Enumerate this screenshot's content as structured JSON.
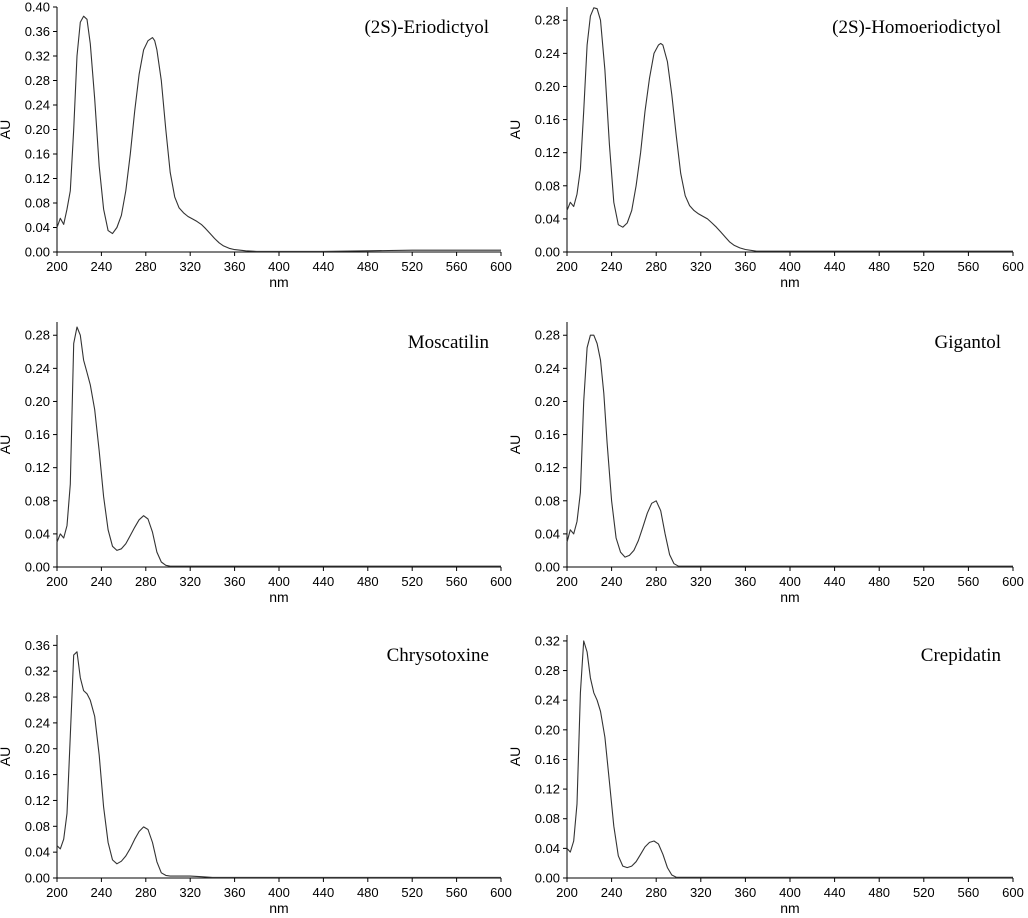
{
  "chart_data": [
    {
      "type": "line",
      "title": "(2S)-Eriodictyol",
      "xlabel": "nm",
      "ylabel": "AU",
      "xlim": [
        200,
        600
      ],
      "ylim": [
        0,
        0.4
      ],
      "xticks": [
        "200",
        "240",
        "280",
        "320",
        "360",
        "400",
        "440",
        "480",
        "520",
        "560",
        "600"
      ],
      "yticks": [
        "0.00",
        "0.04",
        "0.08",
        "0.12",
        "0.16",
        "0.20",
        "0.24",
        "0.28",
        "0.32",
        "0.36",
        "0.40"
      ],
      "series": [
        {
          "x": [
            200,
            203,
            206,
            209,
            212,
            215,
            218,
            221,
            224,
            227,
            230,
            234,
            238,
            242,
            246,
            250,
            254,
            258,
            262,
            266,
            270,
            274,
            278,
            282,
            286,
            288,
            290,
            294,
            298,
            302,
            306,
            310,
            314,
            318,
            322,
            326,
            330,
            334,
            338,
            342,
            346,
            350,
            355,
            360,
            370,
            380,
            400,
            440,
            480,
            520,
            560,
            600
          ],
          "y": [
            0.04,
            0.055,
            0.045,
            0.07,
            0.1,
            0.2,
            0.32,
            0.375,
            0.385,
            0.38,
            0.34,
            0.25,
            0.14,
            0.07,
            0.035,
            0.03,
            0.04,
            0.06,
            0.1,
            0.16,
            0.23,
            0.29,
            0.33,
            0.345,
            0.35,
            0.345,
            0.33,
            0.28,
            0.2,
            0.13,
            0.09,
            0.072,
            0.064,
            0.058,
            0.054,
            0.05,
            0.045,
            0.038,
            0.03,
            0.022,
            0.015,
            0.01,
            0.006,
            0.004,
            0.002,
            0.001,
            0.001,
            0.001,
            0.002,
            0.003,
            0.003,
            0.003
          ]
        }
      ]
    },
    {
      "type": "line",
      "title": "(2S)-Homoeriodictyol",
      "xlabel": "nm",
      "ylabel": "AU",
      "xlim": [
        200,
        600
      ],
      "ylim": [
        0,
        0.296
      ],
      "xticks": [
        "200",
        "240",
        "280",
        "320",
        "360",
        "400",
        "440",
        "480",
        "520",
        "560",
        "600"
      ],
      "yticks": [
        "0.00",
        "0.04",
        "0.08",
        "0.12",
        "0.16",
        "0.20",
        "0.24",
        "0.28"
      ],
      "series": [
        {
          "x": [
            200,
            203,
            206,
            209,
            212,
            215,
            218,
            221,
            224,
            227,
            230,
            234,
            238,
            242,
            246,
            250,
            254,
            258,
            262,
            266,
            270,
            274,
            278,
            282,
            284,
            286,
            290,
            294,
            298,
            302,
            306,
            310,
            314,
            318,
            322,
            326,
            330,
            334,
            338,
            342,
            346,
            350,
            355,
            360,
            370,
            380,
            400,
            440,
            480,
            520,
            560,
            600
          ],
          "y": [
            0.05,
            0.06,
            0.055,
            0.07,
            0.1,
            0.17,
            0.25,
            0.285,
            0.295,
            0.294,
            0.28,
            0.22,
            0.13,
            0.06,
            0.033,
            0.03,
            0.035,
            0.05,
            0.08,
            0.12,
            0.17,
            0.21,
            0.24,
            0.25,
            0.252,
            0.25,
            0.23,
            0.19,
            0.14,
            0.095,
            0.068,
            0.056,
            0.05,
            0.046,
            0.043,
            0.04,
            0.035,
            0.03,
            0.024,
            0.018,
            0.012,
            0.008,
            0.005,
            0.003,
            0.001,
            0.001,
            0.001,
            0.001,
            0.001,
            0.001,
            0.001,
            0.001
          ]
        }
      ]
    },
    {
      "type": "line",
      "title": "Moscatilin",
      "xlabel": "nm",
      "ylabel": "AU",
      "xlim": [
        200,
        600
      ],
      "ylim": [
        0,
        0.296
      ],
      "xticks": [
        "200",
        "240",
        "280",
        "320",
        "360",
        "400",
        "440",
        "480",
        "520",
        "560",
        "600"
      ],
      "yticks": [
        "0.00",
        "0.04",
        "0.08",
        "0.12",
        "0.16",
        "0.20",
        "0.24",
        "0.28"
      ],
      "series": [
        {
          "x": [
            200,
            203,
            206,
            209,
            212,
            215,
            218,
            221,
            224,
            227,
            230,
            234,
            238,
            242,
            246,
            250,
            254,
            258,
            262,
            266,
            270,
            274,
            278,
            282,
            286,
            290,
            294,
            298,
            302,
            310,
            320,
            340,
            360,
            400,
            440,
            480,
            520,
            560,
            600
          ],
          "y": [
            0.03,
            0.04,
            0.035,
            0.05,
            0.1,
            0.27,
            0.29,
            0.28,
            0.25,
            0.235,
            0.22,
            0.19,
            0.14,
            0.085,
            0.045,
            0.025,
            0.02,
            0.022,
            0.028,
            0.038,
            0.048,
            0.057,
            0.062,
            0.058,
            0.042,
            0.018,
            0.006,
            0.002,
            0.001,
            0.001,
            0.001,
            0.001,
            0.001,
            0.001,
            0.001,
            0.001,
            0.001,
            0.001,
            0.001
          ]
        }
      ]
    },
    {
      "type": "line",
      "title": "Gigantol",
      "xlabel": "nm",
      "ylabel": "AU",
      "xlim": [
        200,
        600
      ],
      "ylim": [
        0,
        0.296
      ],
      "xticks": [
        "200",
        "240",
        "280",
        "320",
        "360",
        "400",
        "440",
        "480",
        "520",
        "560",
        "600"
      ],
      "yticks": [
        "0.00",
        "0.04",
        "0.08",
        "0.12",
        "0.16",
        "0.20",
        "0.24",
        "0.28"
      ],
      "series": [
        {
          "x": [
            200,
            203,
            206,
            209,
            212,
            215,
            218,
            221,
            224,
            227,
            230,
            233,
            236,
            240,
            244,
            248,
            252,
            256,
            260,
            264,
            268,
            272,
            276,
            280,
            284,
            288,
            292,
            296,
            300,
            310,
            320,
            340,
            360,
            400,
            440,
            480,
            520,
            560,
            600
          ],
          "y": [
            0.03,
            0.045,
            0.04,
            0.055,
            0.09,
            0.2,
            0.265,
            0.28,
            0.28,
            0.27,
            0.25,
            0.21,
            0.15,
            0.08,
            0.035,
            0.018,
            0.012,
            0.014,
            0.02,
            0.032,
            0.048,
            0.065,
            0.077,
            0.08,
            0.068,
            0.04,
            0.015,
            0.004,
            0.001,
            0.001,
            0.001,
            0.001,
            0.001,
            0.001,
            0.001,
            0.001,
            0.001,
            0.001,
            0.001
          ]
        }
      ]
    },
    {
      "type": "line",
      "title": "Chrysotoxine",
      "xlabel": "nm",
      "ylabel": "AU",
      "xlim": [
        200,
        600
      ],
      "ylim": [
        0,
        0.376
      ],
      "xticks": [
        "200",
        "240",
        "280",
        "320",
        "360",
        "400",
        "440",
        "480",
        "520",
        "560",
        "600"
      ],
      "yticks": [
        "0.00",
        "0.04",
        "0.08",
        "0.12",
        "0.16",
        "0.20",
        "0.24",
        "0.28",
        "0.32",
        "0.36"
      ],
      "series": [
        {
          "x": [
            200,
            203,
            206,
            209,
            212,
            215,
            218,
            221,
            224,
            227,
            230,
            234,
            238,
            242,
            246,
            250,
            254,
            258,
            262,
            266,
            270,
            274,
            278,
            282,
            286,
            290,
            294,
            298,
            302,
            310,
            320,
            330,
            340,
            360,
            400,
            440,
            480,
            520,
            560,
            600
          ],
          "y": [
            0.05,
            0.045,
            0.06,
            0.1,
            0.22,
            0.345,
            0.35,
            0.31,
            0.29,
            0.285,
            0.275,
            0.25,
            0.19,
            0.11,
            0.055,
            0.028,
            0.022,
            0.026,
            0.034,
            0.046,
            0.06,
            0.072,
            0.079,
            0.075,
            0.055,
            0.025,
            0.008,
            0.004,
            0.003,
            0.003,
            0.003,
            0.002,
            0.001,
            0.001,
            0.001,
            0.001,
            0.001,
            0.001,
            0.001,
            0.001
          ]
        }
      ]
    },
    {
      "type": "line",
      "title": "Crepidatin",
      "xlabel": "nm",
      "ylabel": "AU",
      "xlim": [
        200,
        600
      ],
      "ylim": [
        0,
        0.328
      ],
      "xticks": [
        "200",
        "240",
        "280",
        "320",
        "360",
        "400",
        "440",
        "480",
        "520",
        "560",
        "600"
      ],
      "yticks": [
        "0.00",
        "0.04",
        "0.08",
        "0.12",
        "0.16",
        "0.20",
        "0.24",
        "0.28",
        "0.32"
      ],
      "series": [
        {
          "x": [
            200,
            203,
            206,
            209,
            212,
            215,
            218,
            221,
            224,
            227,
            230,
            234,
            238,
            242,
            246,
            250,
            254,
            258,
            262,
            266,
            270,
            274,
            278,
            282,
            286,
            290,
            294,
            298,
            302,
            310,
            320,
            340,
            360,
            400,
            440,
            480,
            520,
            560,
            600
          ],
          "y": [
            0.04,
            0.035,
            0.05,
            0.1,
            0.25,
            0.32,
            0.305,
            0.27,
            0.25,
            0.24,
            0.225,
            0.19,
            0.13,
            0.07,
            0.03,
            0.016,
            0.014,
            0.016,
            0.022,
            0.032,
            0.042,
            0.048,
            0.05,
            0.046,
            0.032,
            0.014,
            0.004,
            0.001,
            0.001,
            0.001,
            0.001,
            0.001,
            0.001,
            0.001,
            0.001,
            0.001,
            0.001,
            0.001,
            0.001
          ]
        }
      ]
    }
  ]
}
